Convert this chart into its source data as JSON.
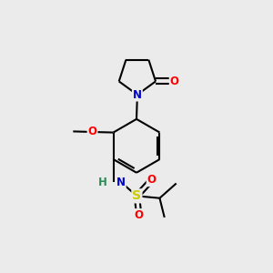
{
  "background_color": "#ebebeb",
  "atom_colors": {
    "C": "#000000",
    "N": "#0000cc",
    "O": "#ff0000",
    "S": "#cccc00",
    "H": "#2e8b57"
  },
  "bond_color": "#000000",
  "bond_width": 1.5,
  "figsize": [
    3.0,
    3.0
  ],
  "dpi": 100
}
